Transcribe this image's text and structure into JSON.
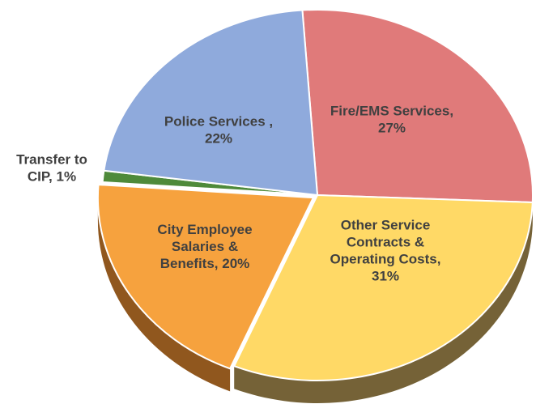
{
  "chart_data": {
    "type": "pie",
    "title": "",
    "slices": [
      {
        "label": "Fire/EMS Services, 27%",
        "label_lines": [
          "Fire/EMS Services,",
          "27%"
        ],
        "value": 27,
        "color": "#E07A7A",
        "side_color": "#8F4646"
      },
      {
        "label": "Other Service Contracts & Operating Costs, 31%",
        "label_lines": [
          "Other Service",
          "Contracts &",
          "Operating Costs,",
          "31%"
        ],
        "value": 31,
        "color": "#FFD966",
        "side_color": "#6E5A2C"
      },
      {
        "label": "City Employee Salaries & Benefits, 20%",
        "label_lines": [
          "City Employee",
          "Salaries &",
          "Benefits, 20%"
        ],
        "value": 20,
        "color": "#F6A23E",
        "side_color": "#8A4E12"
      },
      {
        "label": "Transfer to CIP, 1%",
        "label_lines": [
          "Transfer to",
          "CIP, 1%"
        ],
        "value": 1,
        "color": "#4E8A3A",
        "side_color": "#2F5523"
      },
      {
        "label": "Police Services , 22%",
        "label_lines": [
          "Police Services ,",
          "22%"
        ],
        "value": 22,
        "color": "#8FAADC",
        "side_color": "#55688C"
      }
    ]
  }
}
